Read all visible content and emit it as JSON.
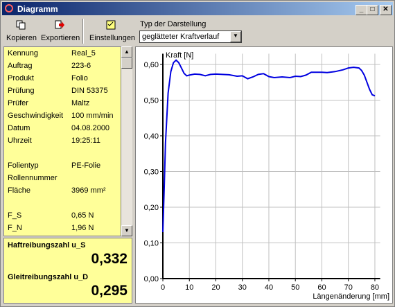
{
  "window": {
    "title": "Diagramm"
  },
  "toolbar": {
    "buttons": [
      "Kopieren",
      "Exportieren",
      "Einstellungen"
    ],
    "type_label": "Typ der Darstellung",
    "type_value": "geglätteter Kraftverlauf"
  },
  "info": {
    "rows": [
      {
        "label": "Kennung",
        "value": "Real_5"
      },
      {
        "label": "Auftrag",
        "value": "223-6"
      },
      {
        "label": "Produkt",
        "value": "Folio"
      },
      {
        "label": "Prüfung",
        "value": "DIN 53375"
      },
      {
        "label": "Prüfer",
        "value": "Maltz"
      },
      {
        "label": "Geschwindigkeit",
        "value": "100 mm/min"
      },
      {
        "label": "Datum",
        "value": "04.08.2000"
      },
      {
        "label": "Uhrzeit",
        "value": "19:25:11"
      },
      {
        "label": "Folientyp",
        "value": "PE-Folie"
      },
      {
        "label": "Rollennummer"
      },
      {
        "label": "Fläche",
        "value": "3969 mm²"
      },
      {
        "label": "F_S",
        "value": "0,65 N"
      },
      {
        "label": "F_N",
        "value": "1,96 N"
      }
    ]
  },
  "results": [
    {
      "label": "Haftreibungszahl u_S",
      "value": "0,332"
    },
    {
      "label": "Gleitreibungszahl u_D",
      "value": "0,295"
    }
  ],
  "chart_data": {
    "type": "line",
    "y_label": "Kraft [N]",
    "x_label": "Längenänderung [mm]",
    "xlim": [
      0,
      82
    ],
    "ylim": [
      0,
      0.63
    ],
    "xticks": [
      0,
      10,
      20,
      30,
      40,
      50,
      60,
      70,
      80
    ],
    "yticks": [
      {
        "value": 0,
        "label": "0,00"
      },
      {
        "value": 0.1,
        "label": "0,10"
      },
      {
        "value": 0.2,
        "label": "0,20"
      },
      {
        "value": 0.3,
        "label": "0,30"
      },
      {
        "value": 0.4,
        "label": "0,40"
      },
      {
        "value": 0.5,
        "label": "0,50"
      },
      {
        "value": 0.6,
        "label": "0,60"
      }
    ],
    "grid": true,
    "series": [
      {
        "color": "#0000e0",
        "x": [
          0,
          0.5,
          1,
          2,
          3,
          4,
          5,
          6,
          7,
          8,
          9,
          10,
          12,
          14,
          16,
          18,
          20,
          25,
          28,
          30,
          32,
          34,
          36,
          38,
          40,
          42,
          45,
          48,
          50,
          52,
          54,
          56,
          58,
          60,
          62,
          65,
          68,
          70,
          72,
          74,
          75,
          76,
          77,
          78,
          79,
          80
        ],
        "values": [
          0.13,
          0.25,
          0.38,
          0.52,
          0.58,
          0.605,
          0.612,
          0.605,
          0.59,
          0.575,
          0.568,
          0.57,
          0.573,
          0.572,
          0.568,
          0.572,
          0.573,
          0.571,
          0.567,
          0.568,
          0.56,
          0.565,
          0.572,
          0.574,
          0.566,
          0.563,
          0.565,
          0.563,
          0.567,
          0.566,
          0.57,
          0.578,
          0.578,
          0.578,
          0.577,
          0.58,
          0.585,
          0.59,
          0.592,
          0.59,
          0.583,
          0.57,
          0.55,
          0.53,
          0.515,
          0.512
        ]
      }
    ]
  }
}
